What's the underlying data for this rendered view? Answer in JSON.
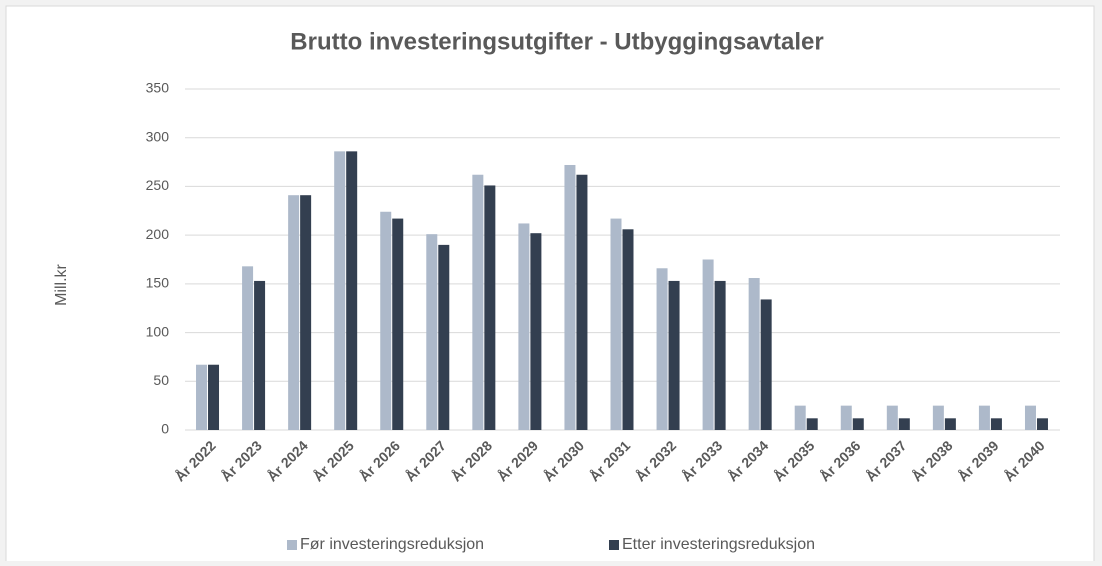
{
  "chart_data": {
    "type": "bar",
    "title": "Brutto investeringsutgifter - Utbyggingsavtaler",
    "y_label": "Mill.kr",
    "categories": [
      "År 2022",
      "År 2023",
      "År 2024",
      "År 2025",
      "År 2026",
      "År 2027",
      "År 2028",
      "År 2029",
      "År 2030",
      "År 2031",
      "År 2032",
      "År 2033",
      "År 2034",
      "År 2035",
      "År 2036",
      "År 2037",
      "År 2038",
      "År 2039",
      "År 2040"
    ],
    "series": [
      {
        "name": "Før investeringsreduksjon",
        "color": "#adb9ca",
        "values": [
          67,
          168,
          241,
          286,
          224,
          201,
          262,
          212,
          272,
          217,
          166,
          175,
          156,
          25,
          25,
          25,
          25,
          25,
          25
        ]
      },
      {
        "name": "Etter  investeringsreduksjon",
        "color": "#333f50",
        "values": [
          67,
          153,
          241,
          286,
          217,
          190,
          251,
          202,
          262,
          206,
          153,
          153,
          134,
          12,
          12,
          12,
          12,
          12,
          12
        ]
      }
    ],
    "ylim": [
      0,
      350
    ],
    "yticks": [
      0,
      50,
      100,
      150,
      200,
      250,
      300,
      350
    ],
    "grid": true,
    "legend": "bottom"
  }
}
